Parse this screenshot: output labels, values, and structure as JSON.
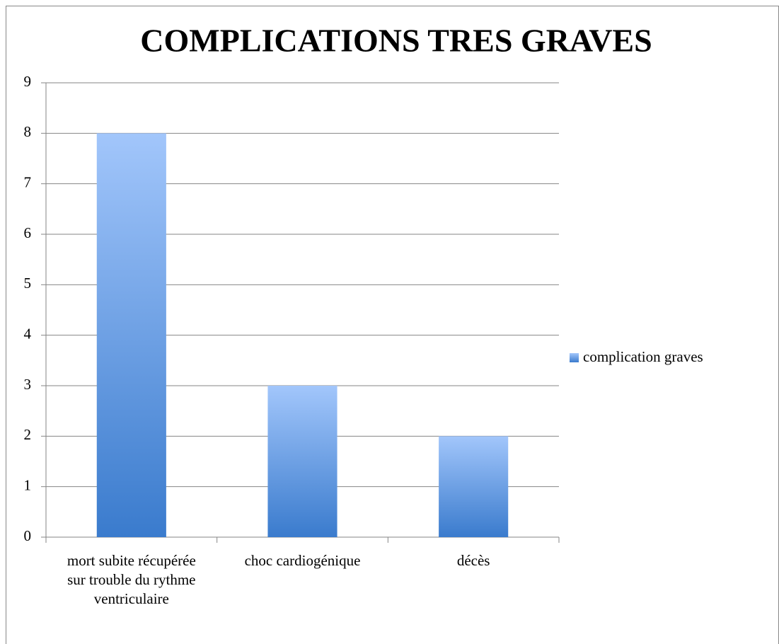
{
  "chart_data": {
    "type": "bar",
    "title": "COMPLICATIONS TRES GRAVES",
    "categories": [
      "mort subite récupérée sur trouble du rythme ventriculaire",
      "choc cardiogénique",
      "décès"
    ],
    "series": [
      {
        "name": "complication graves",
        "color": "#3a7bcd",
        "values": [
          8,
          3,
          2
        ]
      }
    ],
    "ylim": [
      0,
      9
    ],
    "yticks": [
      0,
      1,
      2,
      3,
      4,
      5,
      6,
      7,
      8,
      9
    ],
    "grid": true,
    "legend": "right"
  }
}
